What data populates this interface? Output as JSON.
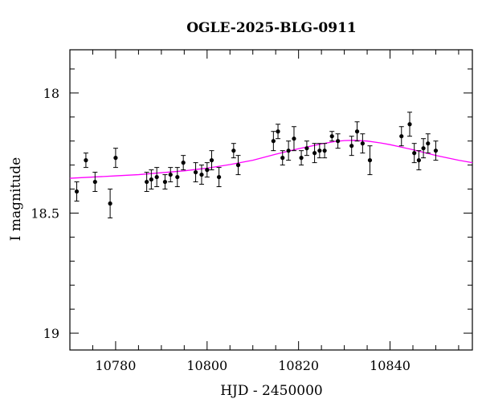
{
  "chart_data": {
    "type": "scatter",
    "title": "OGLE-2025-BLG-0911",
    "xlabel": "HJD - 2450000",
    "ylabel": "I magnitude",
    "xlim": [
      10770,
      10858
    ],
    "ylim": [
      19.07,
      17.82
    ],
    "y_inverted": true,
    "x_ticks": [
      10780,
      10800,
      10820,
      10840
    ],
    "y_ticks": [
      18,
      18.5,
      19
    ],
    "x_tick_labels": [
      "10780",
      "10800",
      "10820",
      "10840"
    ],
    "y_tick_labels": [
      "18",
      "18.5",
      "19"
    ],
    "grid": false,
    "colors": {
      "points": "#000000",
      "model": "#ff00ff"
    },
    "series": [
      {
        "type": "errorbar-scatter",
        "x": [
          10771.5,
          10773.5,
          10775.5,
          10778.8,
          10780.0,
          10786.8,
          10787.8,
          10789.0,
          10790.8,
          10792.0,
          10793.5,
          10794.8,
          10797.5,
          10798.8,
          10800.0,
          10801.0,
          10802.6,
          10805.8,
          10806.8,
          10814.5,
          10815.5,
          10816.5,
          10817.8,
          10819.0,
          10820.6,
          10821.8,
          10823.5,
          10824.6,
          10825.7,
          10827.3,
          10828.6,
          10831.6,
          10832.8,
          10834.0,
          10835.6,
          10842.5,
          10844.3,
          10845.3,
          10846.3,
          10847.3,
          10848.3,
          10850.0
        ],
        "y": [
          18.41,
          18.28,
          18.37,
          18.46,
          18.27,
          18.37,
          18.36,
          18.35,
          18.37,
          18.34,
          18.35,
          18.29,
          18.33,
          18.34,
          18.32,
          18.28,
          18.35,
          18.24,
          18.3,
          18.2,
          18.16,
          18.27,
          18.24,
          18.19,
          18.27,
          18.23,
          18.25,
          18.24,
          18.24,
          18.18,
          18.2,
          18.22,
          18.16,
          18.21,
          18.28,
          18.18,
          18.13,
          18.25,
          18.28,
          18.23,
          18.21,
          18.24
        ],
        "yerr": [
          0.04,
          0.03,
          0.04,
          0.06,
          0.04,
          0.04,
          0.04,
          0.04,
          0.03,
          0.03,
          0.04,
          0.03,
          0.04,
          0.04,
          0.03,
          0.04,
          0.04,
          0.03,
          0.04,
          0.04,
          0.03,
          0.03,
          0.04,
          0.05,
          0.03,
          0.03,
          0.04,
          0.03,
          0.03,
          0.02,
          0.03,
          0.04,
          0.04,
          0.04,
          0.06,
          0.04,
          0.05,
          0.04,
          0.04,
          0.04,
          0.04,
          0.04
        ]
      },
      {
        "type": "line",
        "x": [
          10770,
          10775,
          10780,
          10785,
          10790,
          10795,
          10800,
          10805,
          10810,
          10815,
          10820,
          10825,
          10828,
          10830,
          10832,
          10835,
          10838,
          10840,
          10845,
          10850,
          10855,
          10858
        ],
        "y": [
          18.355,
          18.35,
          18.345,
          18.34,
          18.332,
          18.324,
          18.313,
          18.298,
          18.28,
          18.255,
          18.232,
          18.212,
          18.202,
          18.198,
          18.197,
          18.2,
          18.208,
          18.215,
          18.236,
          18.26,
          18.28,
          18.29
        ]
      }
    ]
  }
}
